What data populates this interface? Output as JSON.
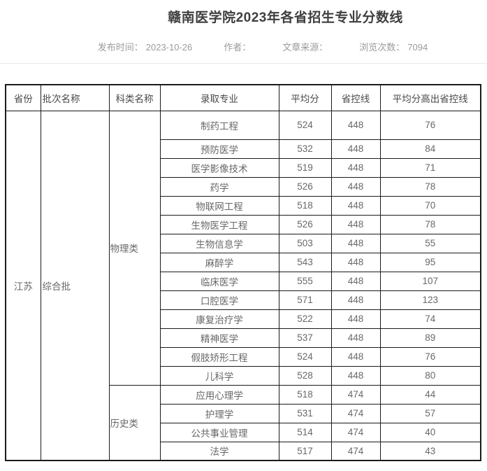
{
  "article": {
    "title": "赣南医学院2023年各省招生专业分数线",
    "meta": {
      "publish_label": "发布时间：",
      "publish_date": "2023-10-26",
      "author_label": "作者：",
      "source_label": "文章来源：",
      "views_label": "浏览次数：",
      "views_count": "7094"
    }
  },
  "table": {
    "headers": [
      "省份",
      "批次名称",
      "科类名称",
      "录取专业",
      "平均分",
      "省控线",
      "平均分高出省控线"
    ],
    "province": "江苏",
    "batch": "综合批",
    "groups": [
      {
        "category": "物理类",
        "rows": [
          {
            "major": "制药工程",
            "avg": 524,
            "control": 448,
            "diff": 76
          },
          {
            "major": "预防医学",
            "avg": 532,
            "control": 448,
            "diff": 84
          },
          {
            "major": "医学影像技术",
            "avg": 519,
            "control": 448,
            "diff": 71
          },
          {
            "major": "药学",
            "avg": 526,
            "control": 448,
            "diff": 78
          },
          {
            "major": "物联网工程",
            "avg": 518,
            "control": 448,
            "diff": 70
          },
          {
            "major": "生物医学工程",
            "avg": 526,
            "control": 448,
            "diff": 78
          },
          {
            "major": "生物信息学",
            "avg": 503,
            "control": 448,
            "diff": 55
          },
          {
            "major": "麻醉学",
            "avg": 543,
            "control": 448,
            "diff": 95
          },
          {
            "major": "临床医学",
            "avg": 555,
            "control": 448,
            "diff": 107
          },
          {
            "major": "口腔医学",
            "avg": 571,
            "control": 448,
            "diff": 123
          },
          {
            "major": "康复治疗学",
            "avg": 522,
            "control": 448,
            "diff": 74
          },
          {
            "major": "精神医学",
            "avg": 537,
            "control": 448,
            "diff": 89
          },
          {
            "major": "假肢矫形工程",
            "avg": 524,
            "control": 448,
            "diff": 76
          },
          {
            "major": "儿科学",
            "avg": 528,
            "control": 448,
            "diff": 80
          }
        ]
      },
      {
        "category": "历史类",
        "rows": [
          {
            "major": "应用心理学",
            "avg": 518,
            "control": 474,
            "diff": 44
          },
          {
            "major": "护理学",
            "avg": 531,
            "control": 474,
            "diff": 57
          },
          {
            "major": "公共事业管理",
            "avg": 514,
            "control": 474,
            "diff": 40
          },
          {
            "major": "法学",
            "avg": 517,
            "control": 474,
            "diff": 43
          }
        ]
      }
    ]
  },
  "colors": {
    "table_border": "#1a1a1a",
    "title_text": "#3f3f3f",
    "meta_text": "#9b9b9b",
    "cell_text": "#686868",
    "divider": "#e9e9e9"
  }
}
